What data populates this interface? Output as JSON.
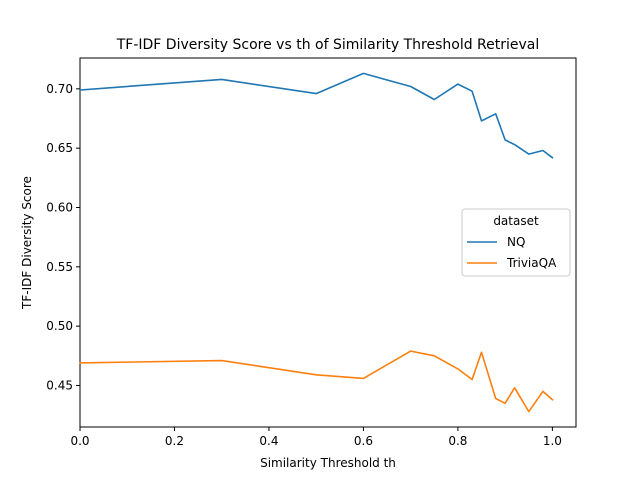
{
  "chart_data": {
    "type": "line",
    "title": "TF-IDF Diversity Score vs th of Similarity Threshold Retrieval",
    "xlabel": "Similarity Threshold th",
    "ylabel": "TF-IDF Diversity Score",
    "xlim": [
      0.0,
      1.05
    ],
    "ylim": [
      0.415,
      0.726
    ],
    "xticks": [
      0.0,
      0.2,
      0.4,
      0.6,
      0.8,
      1.0
    ],
    "xtick_labels": [
      "0.0",
      "0.2",
      "0.4",
      "0.6",
      "0.8",
      "1.0"
    ],
    "yticks": [
      0.45,
      0.5,
      0.55,
      0.6,
      0.65,
      0.7
    ],
    "ytick_labels": [
      "0.45",
      "0.50",
      "0.55",
      "0.60",
      "0.65",
      "0.70"
    ],
    "grid": false,
    "legend": {
      "title": "dataset",
      "position": "center-right"
    },
    "series": [
      {
        "name": "NQ",
        "color": "#1f77b4",
        "x": [
          0.0,
          0.3,
          0.5,
          0.6,
          0.7,
          0.75,
          0.8,
          0.83,
          0.85,
          0.88,
          0.9,
          0.92,
          0.95,
          0.98,
          1.0
        ],
        "y": [
          0.699,
          0.708,
          0.696,
          0.713,
          0.702,
          0.691,
          0.704,
          0.698,
          0.673,
          0.679,
          0.657,
          0.653,
          0.645,
          0.648,
          0.642
        ]
      },
      {
        "name": "TriviaQA",
        "color": "#ff7f0e",
        "x": [
          0.0,
          0.3,
          0.5,
          0.6,
          0.7,
          0.75,
          0.8,
          0.83,
          0.85,
          0.88,
          0.9,
          0.92,
          0.95,
          0.98,
          1.0
        ],
        "y": [
          0.469,
          0.471,
          0.459,
          0.456,
          0.479,
          0.475,
          0.464,
          0.455,
          0.478,
          0.439,
          0.435,
          0.448,
          0.428,
          0.445,
          0.438
        ]
      }
    ]
  }
}
